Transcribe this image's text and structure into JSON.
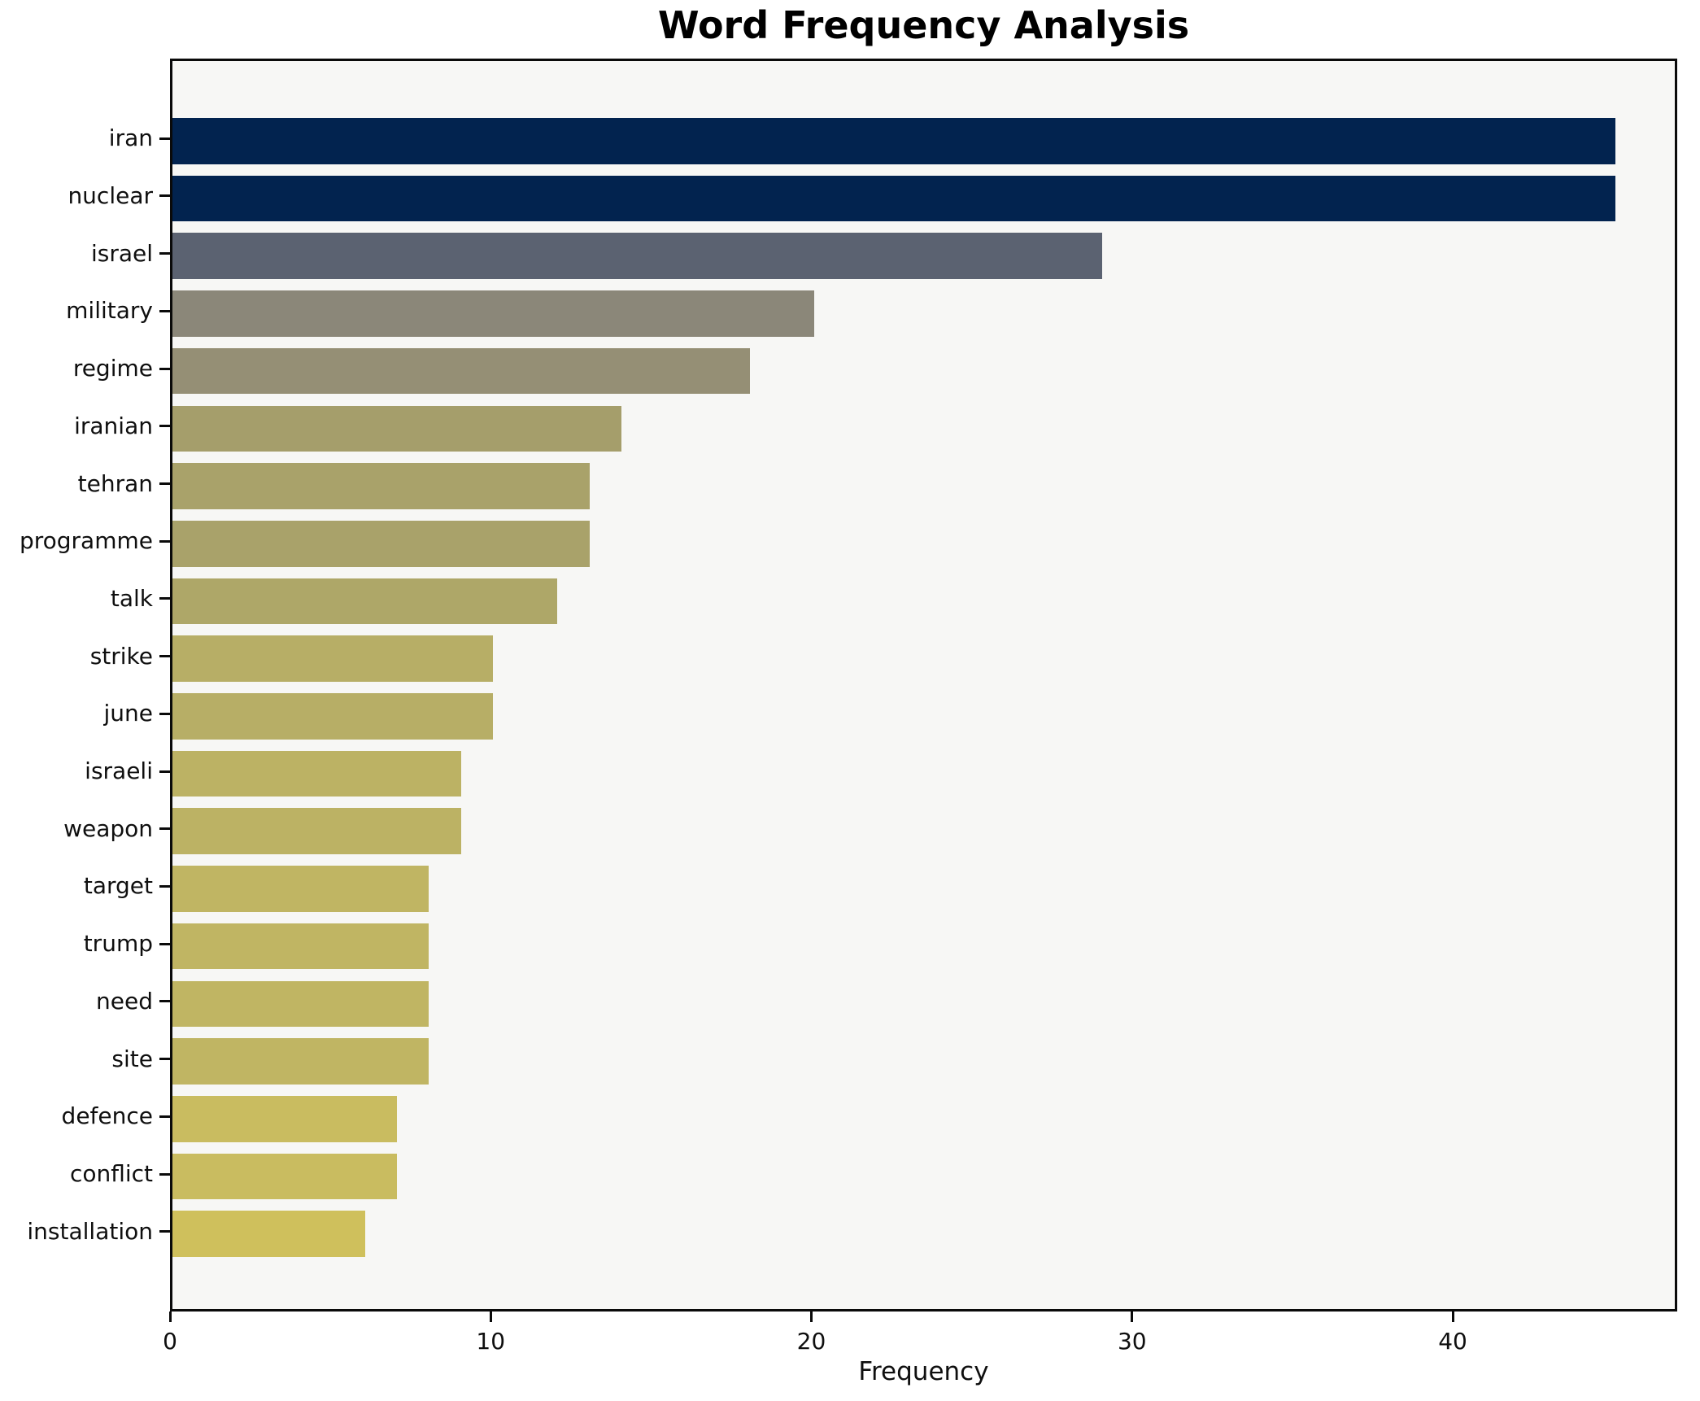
{
  "chart_data": {
    "type": "bar",
    "orientation": "horizontal",
    "title": "Word Frequency Analysis",
    "xlabel": "Frequency",
    "ylabel": "",
    "categories": [
      "iran",
      "nuclear",
      "israel",
      "military",
      "regime",
      "iranian",
      "tehran",
      "programme",
      "talk",
      "strike",
      "june",
      "israeli",
      "weapon",
      "target",
      "trump",
      "need",
      "site",
      "defence",
      "conflict",
      "installation"
    ],
    "values": [
      45,
      45,
      29,
      20,
      18,
      14,
      13,
      13,
      12,
      10,
      10,
      9,
      9,
      8,
      8,
      8,
      8,
      7,
      7,
      6
    ],
    "bar_colors": [
      "#02234f",
      "#02234f",
      "#5b6271",
      "#8b8779",
      "#958f75",
      "#a59e6b",
      "#a9a26a",
      "#a9a26a",
      "#aea768",
      "#b7ae66",
      "#b7ae66",
      "#bcb264",
      "#bcb264",
      "#c0b563",
      "#c0b563",
      "#c0b563",
      "#c0b563",
      "#c9bc60",
      "#c9bc60",
      "#cfc05c"
    ],
    "xticks": [
      0,
      10,
      20,
      30,
      40
    ],
    "xlim": [
      0,
      47
    ],
    "grid": false,
    "legend": null,
    "plot_background": "#f7f7f5",
    "figure_background": "#ffffff",
    "bar_height_fraction": 0.8
  }
}
